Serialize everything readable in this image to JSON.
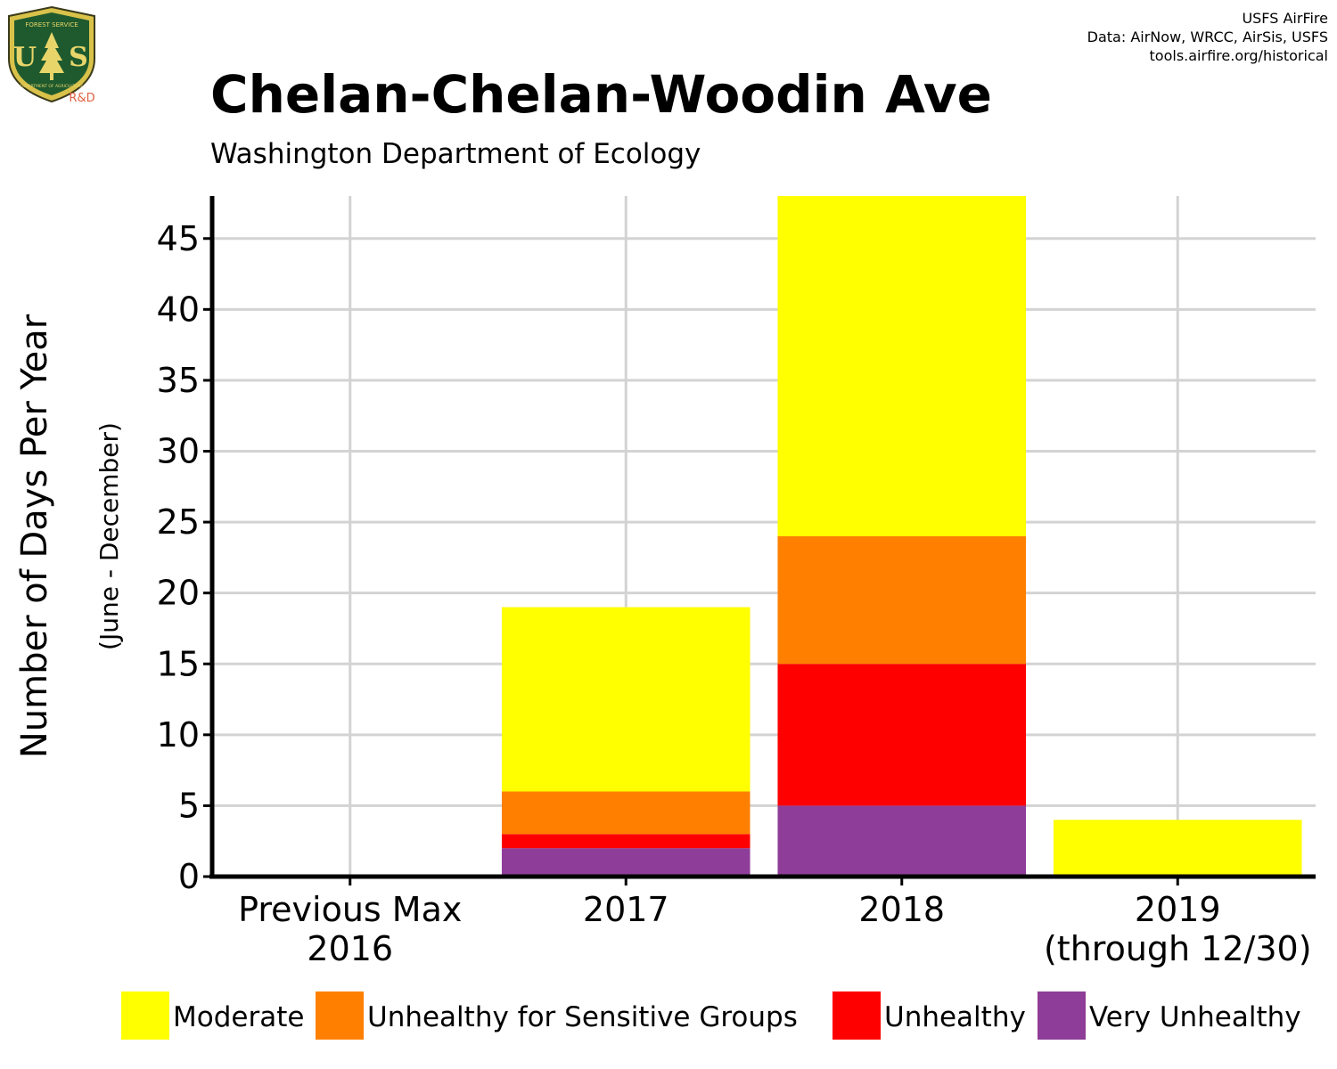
{
  "header": {
    "title": "Chelan-Chelan-Woodin Ave",
    "subtitle": "Washington Department of Ecology",
    "credits": [
      "USFS AirFire",
      "Data: AirNow, WRCC, AirSis, USFS",
      "tools.airfire.org/historical"
    ]
  },
  "logo": {
    "letters": "USFS",
    "top_text": "FOREST SERVICE",
    "bottom_text": "DEPARTMENT OF AGRICULTURE",
    "badge": "R&D"
  },
  "chart_data": {
    "type": "bar",
    "stacked": true,
    "title": "Chelan-Chelan-Woodin Ave",
    "subtitle": "Washington Department of Ecology",
    "ylabel": "Number of Days Per Year",
    "ylabel_sub": "(June - December)",
    "xlabel": "",
    "ylim": [
      0,
      48
    ],
    "yticks": [
      0,
      5,
      10,
      15,
      20,
      25,
      30,
      35,
      40,
      45
    ],
    "grid": true,
    "legend_position": "bottom",
    "categories": [
      [
        "Previous Max",
        "2016"
      ],
      [
        "2017"
      ],
      [
        "2018"
      ],
      [
        "2019",
        "(through 12/30)"
      ]
    ],
    "series": [
      {
        "name": "Very Unhealthy",
        "color": "#8E3D98",
        "values": [
          0,
          2,
          5,
          0
        ]
      },
      {
        "name": "Unhealthy",
        "color": "#FF0000",
        "values": [
          0,
          1,
          10,
          0
        ]
      },
      {
        "name": "Unhealthy for Sensitive Groups",
        "color": "#FF8000",
        "values": [
          0,
          3,
          9,
          0
        ]
      },
      {
        "name": "Moderate",
        "color": "#FFFF00",
        "values": [
          0,
          13,
          24,
          4
        ]
      }
    ],
    "legend_order": [
      "Moderate",
      "Unhealthy for Sensitive Groups",
      "Unhealthy",
      "Very Unhealthy"
    ]
  }
}
